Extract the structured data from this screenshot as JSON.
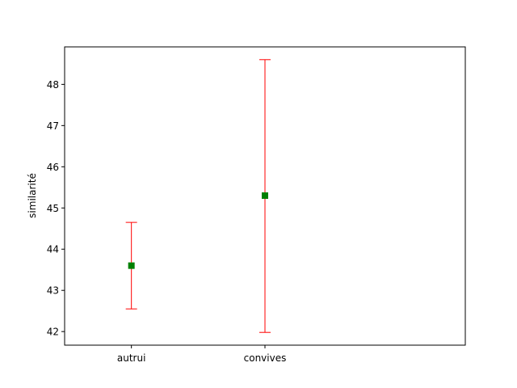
{
  "chart_data": {
    "type": "scatter",
    "title": "",
    "xlabel": "",
    "ylabel": "similarité",
    "categories": [
      "autrui",
      "convives"
    ],
    "series": [
      {
        "values": [
          43.6,
          45.3
        ],
        "error_low": [
          42.55,
          41.98
        ],
        "error_high": [
          44.65,
          48.6
        ],
        "marker": "square"
      }
    ],
    "ylim": [
      41.67,
      48.91
    ],
    "yticks": [
      42,
      43,
      44,
      45,
      46,
      47,
      48
    ],
    "grid": false,
    "legend": "none",
    "colors": {
      "marker": "#008000",
      "errorbar": "#ff0000",
      "axes": "#000000"
    }
  }
}
